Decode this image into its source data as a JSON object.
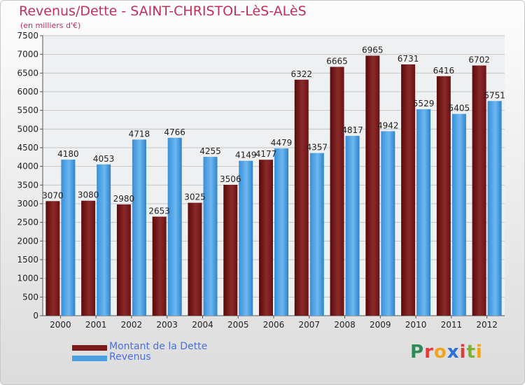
{
  "title": "Revenus/Dette - SAINT-CHRISTOL-LèS-ALèS",
  "subtitle": "(en milliers d'€)",
  "logo": {
    "letters": [
      {
        "ch": "P",
        "color": "#2e8b57"
      },
      {
        "ch": "r",
        "color": "#e03a3a"
      },
      {
        "ch": "o",
        "color": "#f2a51a"
      },
      {
        "ch": "x",
        "color": "#2a6fdb"
      },
      {
        "ch": "i",
        "color": "#e03a3a"
      },
      {
        "ch": "t",
        "color": "#7bb32e"
      },
      {
        "ch": "i",
        "color": "#f2a51a"
      }
    ]
  },
  "chart_data": {
    "type": "bar",
    "categories": [
      "2000",
      "2001",
      "2002",
      "2003",
      "2004",
      "2005",
      "2006",
      "2007",
      "2008",
      "2009",
      "2010",
      "2011",
      "2012"
    ],
    "series": [
      {
        "name": "Montant de la Dette",
        "color": "#7a1a1a",
        "values": [
          3070,
          3080,
          2980,
          2653,
          3025,
          3506,
          4177,
          6322,
          6665,
          6965,
          6731,
          6416,
          6702
        ]
      },
      {
        "name": "Revenus",
        "color": "#4a9fe0",
        "values": [
          4180,
          4053,
          4718,
          4766,
          4255,
          4149,
          4479,
          4357,
          4817,
          4942,
          5529,
          5405,
          5751
        ]
      }
    ],
    "ylim": [
      0,
      7500
    ],
    "yticks": [
      0,
      500,
      1000,
      1500,
      2000,
      2500,
      3000,
      3500,
      4000,
      4500,
      5000,
      5500,
      6000,
      6500,
      7000,
      7500
    ],
    "grid": true,
    "legend": "bottom-left",
    "xlabel": "",
    "ylabel": ""
  }
}
